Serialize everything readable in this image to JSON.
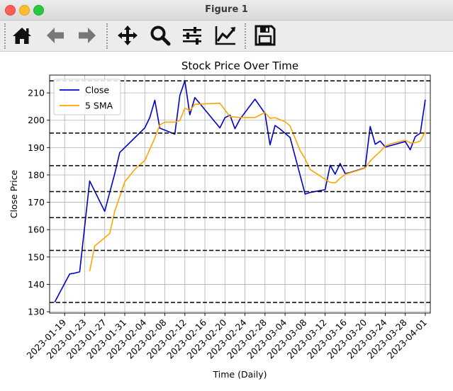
{
  "window": {
    "title": "Figure 1"
  },
  "toolbar": {
    "buttons": [
      {
        "name": "home-button",
        "icon": "home-icon"
      },
      {
        "name": "back-button",
        "icon": "arrow-left-icon"
      },
      {
        "name": "forward-button",
        "icon": "arrow-right-icon"
      },
      {
        "name": "pan-button",
        "icon": "move-icon"
      },
      {
        "name": "zoom-button",
        "icon": "magnifier-icon"
      },
      {
        "name": "configure-subplots-button",
        "icon": "sliders-icon"
      },
      {
        "name": "edit-axes-button",
        "icon": "line-chart-icon"
      },
      {
        "name": "save-button",
        "icon": "floppy-disk-icon"
      }
    ]
  },
  "chart_data": {
    "type": "line",
    "title": "Stock Price Over Time",
    "xlabel": "Time (Daily)",
    "ylabel": "Close Price",
    "grid": true,
    "legend_position": "top-left",
    "xlim": [
      "2023-01-16",
      "2023-04-02"
    ],
    "ylim": [
      129.5,
      216.5
    ],
    "x_ticks": [
      "2023-01-19",
      "2023-01-23",
      "2023-01-27",
      "2023-01-31",
      "2023-02-04",
      "2023-02-08",
      "2023-02-12",
      "2023-02-16",
      "2023-02-20",
      "2023-02-24",
      "2023-02-28",
      "2023-03-04",
      "2023-03-08",
      "2023-03-12",
      "2023-03-16",
      "2023-03-20",
      "2023-03-24",
      "2023-03-28",
      "2023-04-01"
    ],
    "y_ticks": [
      130,
      140,
      150,
      160,
      170,
      180,
      190,
      200,
      210
    ],
    "series": [
      {
        "name": "Close",
        "color": "#0000cc",
        "points": [
          [
            "2023-01-17",
            133.5
          ],
          [
            "2023-01-20",
            143.8
          ],
          [
            "2023-01-21",
            144.1
          ],
          [
            "2023-01-22",
            144.6
          ],
          [
            "2023-01-24",
            177.8
          ],
          [
            "2023-01-27",
            166.7
          ],
          [
            "2023-01-29",
            180.5
          ],
          [
            "2023-01-30",
            188.2
          ],
          [
            "2023-02-03",
            195.4
          ],
          [
            "2023-02-04",
            197.2
          ],
          [
            "2023-02-05",
            201.0
          ],
          [
            "2023-02-06",
            207.3
          ],
          [
            "2023-02-07",
            197.1
          ],
          [
            "2023-02-10",
            194.9
          ],
          [
            "2023-02-11",
            209.1
          ],
          [
            "2023-02-12",
            214.4
          ],
          [
            "2023-02-13",
            202.0
          ],
          [
            "2023-02-14",
            208.3
          ],
          [
            "2023-02-19",
            197.2
          ],
          [
            "2023-02-20",
            200.9
          ],
          [
            "2023-02-21",
            201.9
          ],
          [
            "2023-02-22",
            196.9
          ],
          [
            "2023-02-23",
            200.4
          ],
          [
            "2023-02-26",
            207.7
          ],
          [
            "2023-02-28",
            202.5
          ],
          [
            "2023-03-01",
            191.0
          ],
          [
            "2023-03-02",
            198.1
          ],
          [
            "2023-03-03",
            196.8
          ],
          [
            "2023-03-05",
            193.7
          ],
          [
            "2023-03-08",
            173.0
          ],
          [
            "2023-03-09",
            173.6
          ],
          [
            "2023-03-12",
            174.6
          ],
          [
            "2023-03-13",
            183.5
          ],
          [
            "2023-03-14",
            180.3
          ],
          [
            "2023-03-15",
            184.2
          ],
          [
            "2023-03-16",
            180.5
          ],
          [
            "2023-03-17",
            180.9
          ],
          [
            "2023-03-20",
            182.6
          ],
          [
            "2023-03-21",
            197.7
          ],
          [
            "2023-03-22",
            191.2
          ],
          [
            "2023-03-23",
            192.4
          ],
          [
            "2023-03-24",
            190.2
          ],
          [
            "2023-03-28",
            192.2
          ],
          [
            "2023-03-29",
            189.2
          ],
          [
            "2023-03-30",
            194.0
          ],
          [
            "2023-03-31",
            195.3
          ],
          [
            "2023-04-01",
            207.5
          ]
        ]
      },
      {
        "name": "5 SMA",
        "color": "#ffa500",
        "points": [
          [
            "2023-01-24",
            144.8
          ],
          [
            "2023-01-25",
            154.0
          ],
          [
            "2023-01-28",
            158.6
          ],
          [
            "2023-01-29",
            166.8
          ],
          [
            "2023-01-30",
            172.1
          ],
          [
            "2023-01-31",
            177.5
          ],
          [
            "2023-02-02",
            182.0
          ],
          [
            "2023-02-04",
            185.3
          ],
          [
            "2023-02-06",
            193.5
          ],
          [
            "2023-02-07",
            198.3
          ],
          [
            "2023-02-08",
            199.3
          ],
          [
            "2023-02-09",
            199.3
          ],
          [
            "2023-02-10",
            199.3
          ],
          [
            "2023-02-11",
            199.9
          ],
          [
            "2023-02-12",
            204.4
          ],
          [
            "2023-02-13",
            203.5
          ],
          [
            "2023-02-14",
            205.8
          ],
          [
            "2023-02-16",
            206.0
          ],
          [
            "2023-02-19",
            206.2
          ],
          [
            "2023-02-21",
            201.3
          ],
          [
            "2023-02-23",
            201.0
          ],
          [
            "2023-02-26",
            201.0
          ],
          [
            "2023-02-28",
            202.8
          ],
          [
            "2023-03-01",
            200.7
          ],
          [
            "2023-03-02",
            200.9
          ],
          [
            "2023-03-04",
            199.5
          ],
          [
            "2023-03-05",
            197.9
          ],
          [
            "2023-03-07",
            188.9
          ],
          [
            "2023-03-08",
            185.9
          ],
          [
            "2023-03-09",
            182.0
          ],
          [
            "2023-03-12",
            178.4
          ],
          [
            "2023-03-13",
            177.3
          ],
          [
            "2023-03-14",
            177.1
          ],
          [
            "2023-03-15",
            178.8
          ],
          [
            "2023-03-16",
            180.2
          ],
          [
            "2023-03-19",
            181.9
          ],
          [
            "2023-03-20",
            182.5
          ],
          [
            "2023-03-21",
            185.1
          ],
          [
            "2023-03-22",
            186.9
          ],
          [
            "2023-03-23",
            188.6
          ],
          [
            "2023-03-24",
            190.5
          ],
          [
            "2023-03-25",
            191.3
          ],
          [
            "2023-03-26",
            191.8
          ],
          [
            "2023-03-28",
            192.7
          ],
          [
            "2023-03-29",
            191.7
          ],
          [
            "2023-03-30",
            191.8
          ],
          [
            "2023-03-31",
            192.4
          ],
          [
            "2023-04-01",
            195.9
          ]
        ]
      }
    ],
    "horizontal_lines": {
      "style": "dashed",
      "color": "#000000",
      "values": [
        133.4,
        152.4,
        164.4,
        173.9,
        183.4,
        195.3,
        214.4
      ]
    }
  }
}
